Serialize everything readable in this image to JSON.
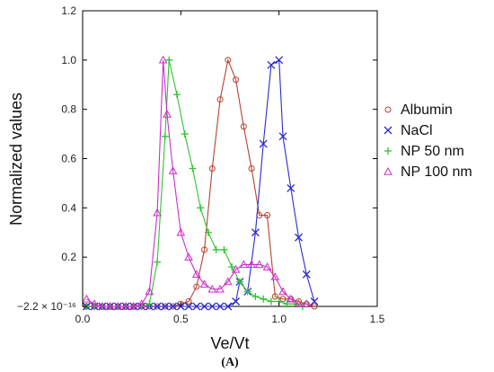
{
  "chart_data": {
    "type": "line",
    "xlabel": "Ve/Vt",
    "ylabel": "Normalized values",
    "xlim": [
      0,
      1.5
    ],
    "ylim": [
      0,
      1.2
    ],
    "xticks": [
      0.0,
      0.5,
      1.0,
      1.5
    ],
    "xtick_labels": [
      "0.0",
      "0.5",
      "1.0",
      "1.5"
    ],
    "yticks": [
      0,
      0.2,
      0.4,
      0.6,
      0.8,
      1.0,
      1.2
    ],
    "ytick_labels": [
      "−2.2 × 10⁻¹⁶",
      "0.2",
      "0.4",
      "0.6",
      "0.8",
      "1.0",
      "1.2"
    ],
    "grid": false,
    "legend_position": "right",
    "caption": "(A)",
    "series": [
      {
        "name": "Albumin",
        "color": "#b5432e",
        "marker": "circle",
        "x": [
          0.02,
          0.06,
          0.1,
          0.14,
          0.18,
          0.22,
          0.26,
          0.3,
          0.34,
          0.38,
          0.42,
          0.46,
          0.5,
          0.54,
          0.58,
          0.62,
          0.66,
          0.7,
          0.74,
          0.78,
          0.82,
          0.86,
          0.9,
          0.94,
          0.98,
          1.02,
          1.06,
          1.1,
          1.14,
          1.18
        ],
        "y": [
          0,
          0,
          0,
          0,
          0,
          0,
          0,
          0,
          0,
          0,
          0,
          0,
          0.01,
          0.02,
          0.08,
          0.23,
          0.56,
          0.84,
          1.0,
          0.92,
          0.73,
          0.56,
          0.37,
          0.37,
          0.04,
          0.03,
          0.03,
          0.02,
          0.01,
          0.0
        ]
      },
      {
        "name": "NaCl",
        "color": "#2b2bd0",
        "marker": "x",
        "x": [
          0.02,
          0.06,
          0.1,
          0.14,
          0.18,
          0.22,
          0.26,
          0.3,
          0.34,
          0.38,
          0.42,
          0.46,
          0.5,
          0.54,
          0.58,
          0.62,
          0.66,
          0.7,
          0.74,
          0.78,
          0.8,
          0.84,
          0.88,
          0.92,
          0.96,
          1.0,
          1.02,
          1.06,
          1.1,
          1.14,
          1.18
        ],
        "y": [
          0,
          0,
          0,
          0,
          0,
          0,
          0,
          0,
          0,
          0,
          0,
          0,
          0,
          0,
          0,
          0,
          0,
          0,
          0,
          0.02,
          0.1,
          0.06,
          0.3,
          0.66,
          0.98,
          1.0,
          0.69,
          0.48,
          0.28,
          0.13,
          0.02
        ]
      },
      {
        "name": "NP 50 nm",
        "color": "#2ec42e",
        "marker": "plus",
        "x": [
          0.02,
          0.06,
          0.1,
          0.14,
          0.18,
          0.22,
          0.26,
          0.3,
          0.34,
          0.38,
          0.42,
          0.44,
          0.48,
          0.52,
          0.56,
          0.6,
          0.64,
          0.68,
          0.72,
          0.76,
          0.8,
          0.84,
          0.88,
          0.92,
          0.96,
          1.0,
          1.04,
          1.08,
          1.12
        ],
        "y": [
          0,
          0,
          0,
          0,
          0,
          0,
          0,
          0,
          0.01,
          0.18,
          0.69,
          1.0,
          0.86,
          0.7,
          0.56,
          0.4,
          0.3,
          0.23,
          0.23,
          0.16,
          0.1,
          0.06,
          0.04,
          0.03,
          0.02,
          0.02,
          0.01,
          0.01,
          0.0
        ]
      },
      {
        "name": "NP 100 nm",
        "color": "#cc2ecc",
        "marker": "triangle",
        "x": [
          0.02,
          0.06,
          0.1,
          0.14,
          0.18,
          0.22,
          0.26,
          0.3,
          0.34,
          0.38,
          0.41,
          0.43,
          0.46,
          0.5,
          0.54,
          0.58,
          0.62,
          0.66,
          0.7,
          0.74,
          0.78,
          0.82,
          0.86,
          0.9,
          0.94,
          0.98,
          1.02,
          1.06,
          1.1,
          1.14
        ],
        "y": [
          0.03,
          0.01,
          0.0,
          0.0,
          0.0,
          0.0,
          0.0,
          0.01,
          0.06,
          0.38,
          1.0,
          0.78,
          0.55,
          0.3,
          0.2,
          0.13,
          0.09,
          0.07,
          0.07,
          0.1,
          0.15,
          0.17,
          0.17,
          0.17,
          0.16,
          0.12,
          0.06,
          0.03,
          0.01,
          0.01
        ]
      }
    ]
  }
}
